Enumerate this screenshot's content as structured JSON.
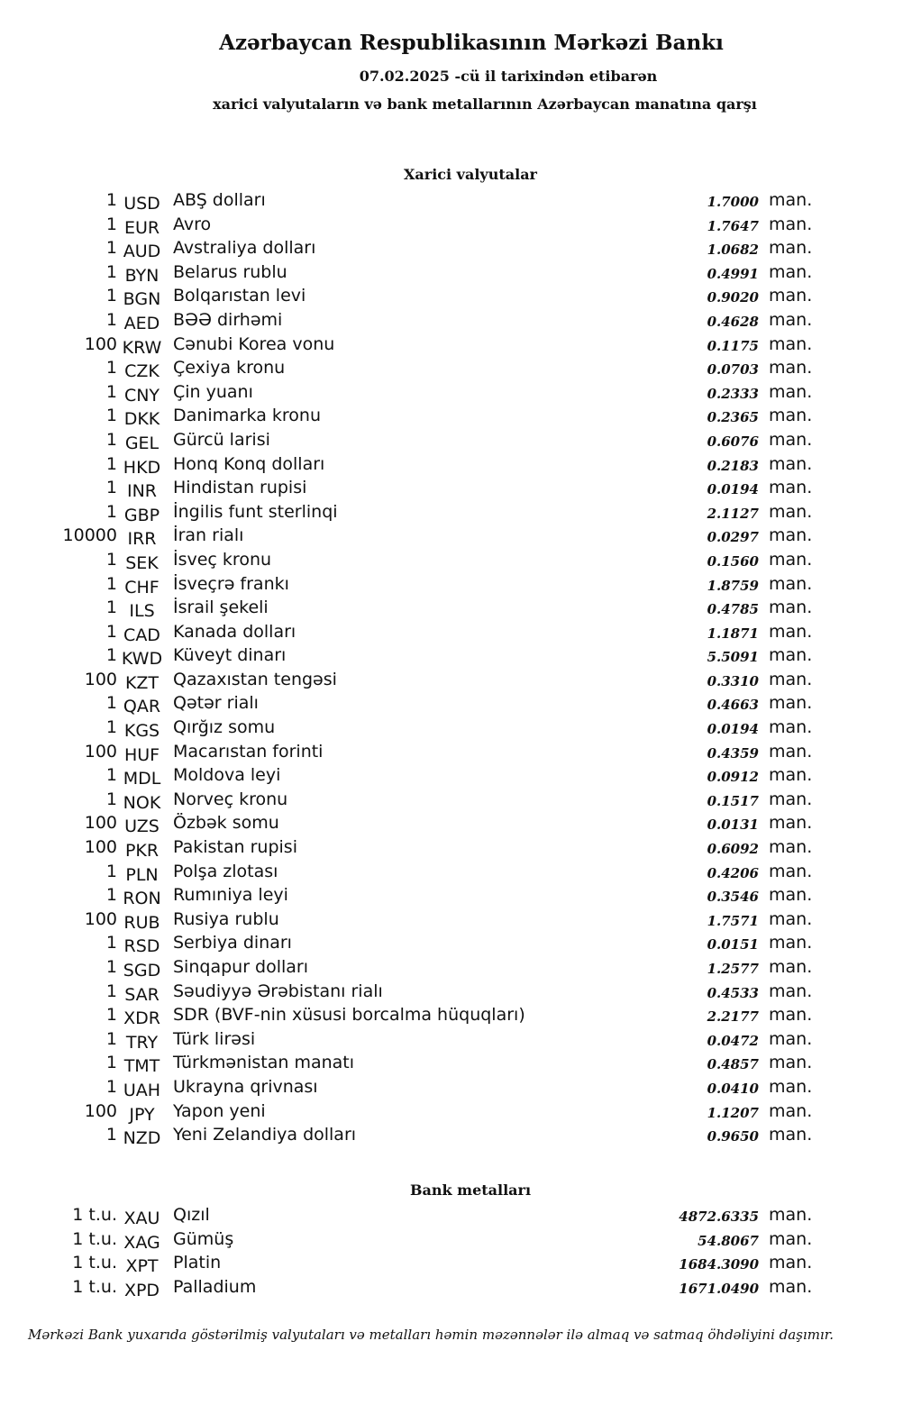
{
  "header": {
    "title": "Azərbaycan Respublikasının Mərkəzi Bankı",
    "date_line": "07.02.2025 -cü il tarixindən etibarən",
    "description": "xarici valyutaların və bank metallarının Azərbaycan manatına qarşı"
  },
  "currencies": {
    "heading": "Xarici valyutalar",
    "rows": [
      {
        "amount": "1",
        "code": "USD",
        "name": "ABŞ dolları",
        "rate": "1.7000",
        "unit": "man."
      },
      {
        "amount": "1",
        "code": "EUR",
        "name": "Avro",
        "rate": "1.7647",
        "unit": "man."
      },
      {
        "amount": "1",
        "code": "AUD",
        "name": "Avstraliya dolları",
        "rate": "1.0682",
        "unit": "man."
      },
      {
        "amount": "1",
        "code": "BYN",
        "name": "Belarus rublu",
        "rate": "0.4991",
        "unit": "man."
      },
      {
        "amount": "1",
        "code": "BGN",
        "name": "Bolqarıstan levi",
        "rate": "0.9020",
        "unit": "man."
      },
      {
        "amount": "1",
        "code": "AED",
        "name": "BƏƏ dirhəmi",
        "rate": "0.4628",
        "unit": "man."
      },
      {
        "amount": "100",
        "code": "KRW",
        "name": "Cənubi Korea vonu",
        "rate": "0.1175",
        "unit": "man."
      },
      {
        "amount": "1",
        "code": "CZK",
        "name": "Çexiya kronu",
        "rate": "0.0703",
        "unit": "man."
      },
      {
        "amount": "1",
        "code": "CNY",
        "name": "Çin yuanı",
        "rate": "0.2333",
        "unit": "man."
      },
      {
        "amount": "1",
        "code": "DKK",
        "name": "Danimarka kronu",
        "rate": "0.2365",
        "unit": "man."
      },
      {
        "amount": "1",
        "code": "GEL",
        "name": "Gürcü larisi",
        "rate": "0.6076",
        "unit": "man."
      },
      {
        "amount": "1",
        "code": "HKD",
        "name": "Honq Konq dolları",
        "rate": "0.2183",
        "unit": "man."
      },
      {
        "amount": "1",
        "code": "INR",
        "name": "Hindistan rupisi",
        "rate": "0.0194",
        "unit": "man."
      },
      {
        "amount": "1",
        "code": "GBP",
        "name": "İngilis funt sterlinqi",
        "rate": "2.1127",
        "unit": "man."
      },
      {
        "amount": "10000",
        "code": "IRR",
        "name": "İran rialı",
        "rate": "0.0297",
        "unit": "man."
      },
      {
        "amount": "1",
        "code": "SEK",
        "name": "İsveç kronu",
        "rate": "0.1560",
        "unit": "man."
      },
      {
        "amount": "1",
        "code": "CHF",
        "name": "İsveçrə frankı",
        "rate": "1.8759",
        "unit": "man."
      },
      {
        "amount": "1",
        "code": "ILS",
        "name": "İsrail şekeli",
        "rate": "0.4785",
        "unit": "man."
      },
      {
        "amount": "1",
        "code": "CAD",
        "name": "Kanada dolları",
        "rate": "1.1871",
        "unit": "man."
      },
      {
        "amount": "1",
        "code": "KWD",
        "name": "Küveyt dinarı",
        "rate": "5.5091",
        "unit": "man."
      },
      {
        "amount": "100",
        "code": "KZT",
        "name": "Qazaxıstan tengəsi",
        "rate": "0.3310",
        "unit": "man."
      },
      {
        "amount": "1",
        "code": "QAR",
        "name": "Qətər rialı",
        "rate": "0.4663",
        "unit": "man."
      },
      {
        "amount": "1",
        "code": "KGS",
        "name": "Qırğız somu",
        "rate": "0.0194",
        "unit": "man."
      },
      {
        "amount": "100",
        "code": "HUF",
        "name": "Macarıstan forinti",
        "rate": "0.4359",
        "unit": "man."
      },
      {
        "amount": "1",
        "code": "MDL",
        "name": "Moldova leyi",
        "rate": "0.0912",
        "unit": "man."
      },
      {
        "amount": "1",
        "code": "NOK",
        "name": "Norveç kronu",
        "rate": "0.1517",
        "unit": "man."
      },
      {
        "amount": "100",
        "code": "UZS",
        "name": "Özbək somu",
        "rate": "0.0131",
        "unit": "man."
      },
      {
        "amount": "100",
        "code": "PKR",
        "name": "Pakistan rupisi",
        "rate": "0.6092",
        "unit": "man."
      },
      {
        "amount": "1",
        "code": "PLN",
        "name": "Polşa zlotası",
        "rate": "0.4206",
        "unit": "man."
      },
      {
        "amount": "1",
        "code": "RON",
        "name": "Rumıniya leyi",
        "rate": "0.3546",
        "unit": "man."
      },
      {
        "amount": "100",
        "code": "RUB",
        "name": "Rusiya rublu",
        "rate": "1.7571",
        "unit": "man."
      },
      {
        "amount": "1",
        "code": "RSD",
        "name": "Serbiya dinarı",
        "rate": "0.0151",
        "unit": "man."
      },
      {
        "amount": "1",
        "code": "SGD",
        "name": "Sinqapur dolları",
        "rate": "1.2577",
        "unit": "man."
      },
      {
        "amount": "1",
        "code": "SAR",
        "name": "Səudiyyə Ərəbistanı rialı",
        "rate": "0.4533",
        "unit": "man."
      },
      {
        "amount": "1",
        "code": "XDR",
        "name": "SDR (BVF-nin xüsusi borcalma hüquqları)",
        "rate": "2.2177",
        "unit": "man."
      },
      {
        "amount": "1",
        "code": "TRY",
        "name": "Türk lirəsi",
        "rate": "0.0472",
        "unit": "man."
      },
      {
        "amount": "1",
        "code": "TMT",
        "name": "Türkmənistan manatı",
        "rate": "0.4857",
        "unit": "man."
      },
      {
        "amount": "1",
        "code": "UAH",
        "name": "Ukrayna qrivnası",
        "rate": "0.0410",
        "unit": "man."
      },
      {
        "amount": "100",
        "code": "JPY",
        "name": "Yapon yeni",
        "rate": "1.1207",
        "unit": "man."
      },
      {
        "amount": "1",
        "code": "NZD",
        "name": "Yeni Zelandiya dolları",
        "rate": "0.9650",
        "unit": "man."
      }
    ]
  },
  "metals": {
    "heading": "Bank metalları",
    "rows": [
      {
        "amount": "1 t.u.",
        "code": "XAU",
        "name": "Qızıl",
        "rate": "4872.6335",
        "unit": "man."
      },
      {
        "amount": "1 t.u.",
        "code": "XAG",
        "name": "Gümüş",
        "rate": "54.8067",
        "unit": "man."
      },
      {
        "amount": "1 t.u.",
        "code": "XPT",
        "name": "Platin",
        "rate": "1684.3090",
        "unit": "man."
      },
      {
        "amount": "1 t.u.",
        "code": "XPD",
        "name": "Palladium",
        "rate": "1671.0490",
        "unit": "man."
      }
    ]
  },
  "footer": "Mərkəzi Bank yuxarıda göstərilmiş valyutaları və metalları həmin məzənnələr ilə almaq və satmaq öhdəliyini daşımır."
}
